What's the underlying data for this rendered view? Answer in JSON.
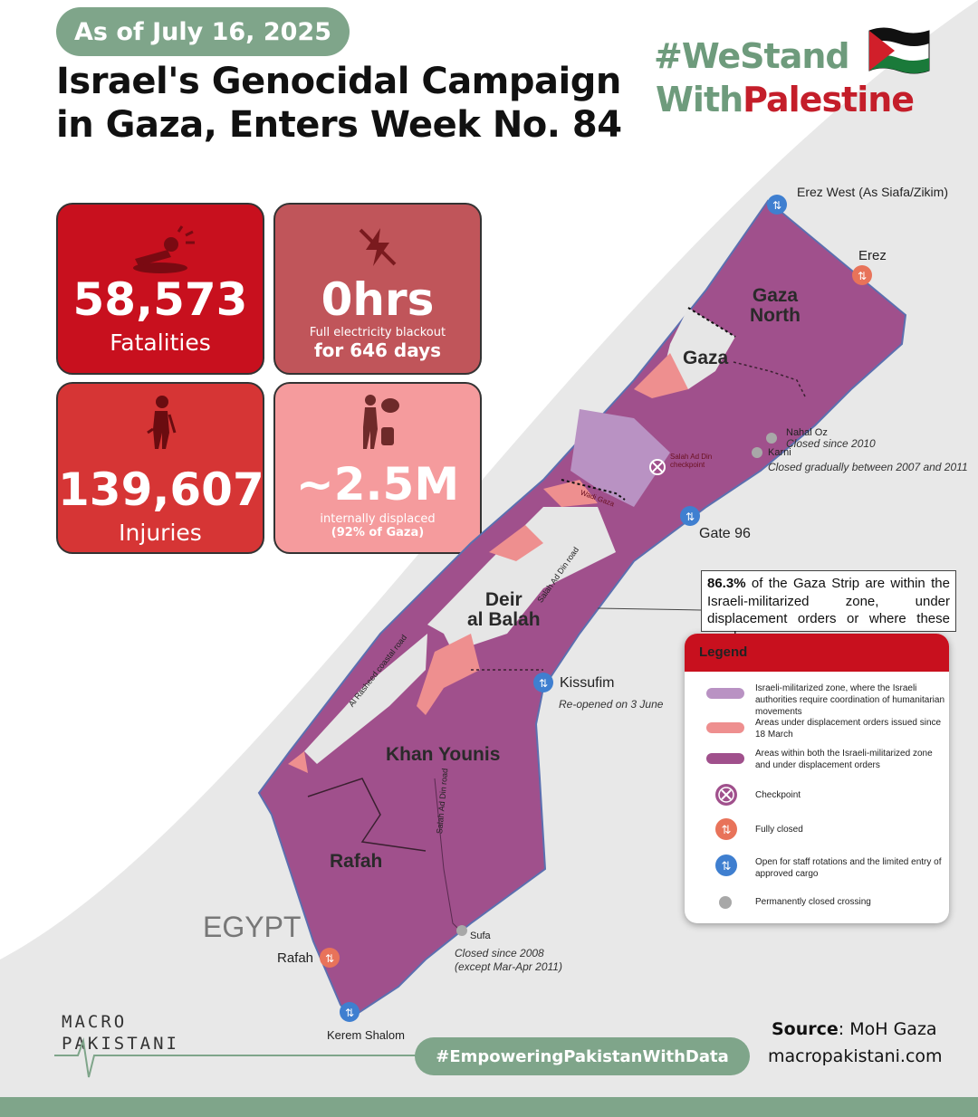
{
  "header": {
    "date": "As of July 16, 2025",
    "title_line1": "Israel's Genocidal Campaign",
    "title_line2": "in Gaza, Enters Week No. 84",
    "hashtag_line1": "#WeStand",
    "hashtag_with": "With",
    "hashtag_palestine": "Palestine"
  },
  "stats": {
    "fatalities": {
      "value": "58,573",
      "label": "Fatalities",
      "icon": "fallen-person-icon"
    },
    "electricity": {
      "value": "0hrs",
      "sub": "Full electricity blackout",
      "detail": "for 646 days",
      "icon": "no-electricity-icon"
    },
    "injuries": {
      "value": "139,607",
      "label": "Injuries",
      "icon": "injured-person-icon"
    },
    "displaced": {
      "value": "~2.5M",
      "sub": "internally displaced",
      "detail": "(92% of Gaza)",
      "icon": "displaced-person-icon"
    }
  },
  "map": {
    "places": {
      "gaza_north_1": "Gaza",
      "gaza_north_2": "North",
      "gaza": "Gaza",
      "deir_1": "Deir",
      "deir_2": "al Balah",
      "khan_younis": "Khan Younis",
      "rafah": "Rafah",
      "egypt": "EGYPT"
    },
    "roads": {
      "coastal": "Al Rasheed coastal road",
      "salah1": "Salah Ad Din road",
      "salah2": "Salah Ad Din road",
      "wadi": "Wadi Gaza",
      "checkpoint_label": "Salah Ad Din checkpoint"
    },
    "crossings": {
      "erez_west": "Erez West (As Siafa/Zikim)",
      "erez": "Erez",
      "nahal_oz": "Nahal Oz",
      "nahal_oz_note": "Closed since 2010",
      "karni": "Karni",
      "karni_note": "Closed gradually between 2007 and 2011",
      "gate96": "Gate 96",
      "kissufim": "Kissufim",
      "kissufim_note": "Re-opened on 3 June",
      "sufa": "Sufa",
      "sufa_note1": "Closed since  2008",
      "sufa_note2": "(except Mar-Apr 2011)",
      "rafah": "Rafah",
      "kerem_shalom": "Kerem Shalom"
    },
    "callout_pct": "86.3%",
    "callout_text": " of the Gaza Strip are within the Israeli-militarized zone, under displacement orders or where these overlap"
  },
  "legend": {
    "title": "Legend",
    "items": [
      {
        "text": "Israeli-militarized zone, where the Israeli authorities require coordination of humanitarian movements",
        "color": "#b992c3"
      },
      {
        "text": "Areas under displacement orders issued since 18 March",
        "color": "#ee8f8f"
      },
      {
        "text": "Areas within both the Israeli-militarized zone and under displacement orders",
        "color": "#a0508c"
      },
      {
        "text": "Checkpoint",
        "color": "#a0508c"
      },
      {
        "text": "Fully closed",
        "color": "#e8735a"
      },
      {
        "text": "Open for staff rotations and the limited entry of approved cargo",
        "color": "#3f7fd0"
      },
      {
        "text": "Permanently closed crossing",
        "color": "#a8a8a8"
      }
    ]
  },
  "footer": {
    "logo_line1": "MACRO",
    "logo_line2": "PAKISTANI",
    "hashtag": "#EmpoweringPakistanWithData",
    "source_label": "Source",
    "source_value": ": MoH Gaza",
    "site": "macropakistani.com"
  },
  "colors": {
    "accent_green": "#7fa58a",
    "red": "#c8101e",
    "purple": "#a0508c",
    "pink": "#ee8f8f",
    "lavender": "#b992c3"
  }
}
